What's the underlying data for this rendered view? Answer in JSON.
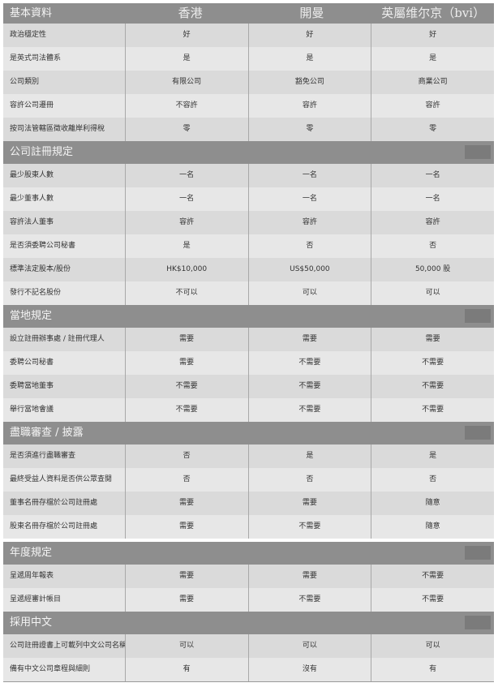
{
  "header": {
    "title": "基本資料",
    "columns": [
      "香港",
      "開曼",
      "英屬维尔京（bvi）"
    ]
  },
  "sections": [
    {
      "title": "",
      "rows": [
        {
          "label": "政治穩定性",
          "values": [
            "好",
            "好",
            "好"
          ]
        },
        {
          "label": "是英式司法體系",
          "values": [
            "是",
            "是",
            "是"
          ]
        },
        {
          "label": "公司類別",
          "values": [
            "有限公司",
            "豁免公司",
            "商業公司"
          ]
        },
        {
          "label": "容許公司遷冊",
          "values": [
            "不容許",
            "容許",
            "容許"
          ]
        },
        {
          "label": "按司法管轄區徵收離岸利得稅",
          "values": [
            "零",
            "零",
            "零"
          ]
        }
      ]
    },
    {
      "title": "公司註冊規定",
      "rows": [
        {
          "label": "最少股東人數",
          "values": [
            "一名",
            "一名",
            "一名"
          ]
        },
        {
          "label": "最少董事人數",
          "values": [
            "一名",
            "一名",
            "一名"
          ]
        },
        {
          "label": "容許法人董事",
          "values": [
            "容許",
            "容許",
            "容許"
          ]
        },
        {
          "label": "是否須委聘公司秘書",
          "values": [
            "是",
            "否",
            "否"
          ]
        },
        {
          "label": "標準法定股本/股份",
          "values": [
            "HK$10,000",
            "US$50,000",
            "50,000 股"
          ]
        },
        {
          "label": "發行不記名股份",
          "values": [
            "不可以",
            "可以",
            "可以"
          ]
        }
      ]
    },
    {
      "title": "當地規定",
      "rows": [
        {
          "label": "設立註冊辦事處 / 註冊代理人",
          "values": [
            "需要",
            "需要",
            "需要"
          ]
        },
        {
          "label": "委聘公司秘書",
          "values": [
            "需要",
            "不需要",
            "不需要"
          ]
        },
        {
          "label": "委聘當地董事",
          "values": [
            "不需要",
            "不需要",
            "不需要"
          ]
        },
        {
          "label": "舉行當地會議",
          "values": [
            "不需要",
            "不需要",
            "不需要"
          ]
        }
      ]
    },
    {
      "title": "盡職審查 / 披露",
      "rows": [
        {
          "label": "是否須進行盡職審查",
          "values": [
            "否",
            "是",
            "是"
          ]
        },
        {
          "label": "最終受益人資料是否供公眾查閱",
          "values": [
            "否",
            "否",
            "否"
          ]
        },
        {
          "label": "董事名冊存檔於公司註冊處",
          "values": [
            "需要",
            "需要",
            "隨意"
          ]
        },
        {
          "label": "股東名冊存檔於公司註冊處",
          "values": [
            "需要",
            "不需要",
            "隨意"
          ]
        }
      ]
    },
    {
      "title": "年度規定",
      "rows": [
        {
          "label": "呈遞周年報表",
          "values": [
            "需要",
            "需要",
            "不需要"
          ]
        },
        {
          "label": "呈遞經審計帳目",
          "values": [
            "需要",
            "不需要",
            "不需要"
          ]
        }
      ]
    },
    {
      "title": "採用中文",
      "rows": [
        {
          "label": "公司註冊證書上可載列中文公司名稱",
          "values": [
            "可以",
            "可以",
            "可以"
          ]
        },
        {
          "label": "備有中文公司章程與細則",
          "values": [
            "有",
            "沒有",
            "有"
          ]
        }
      ]
    }
  ]
}
